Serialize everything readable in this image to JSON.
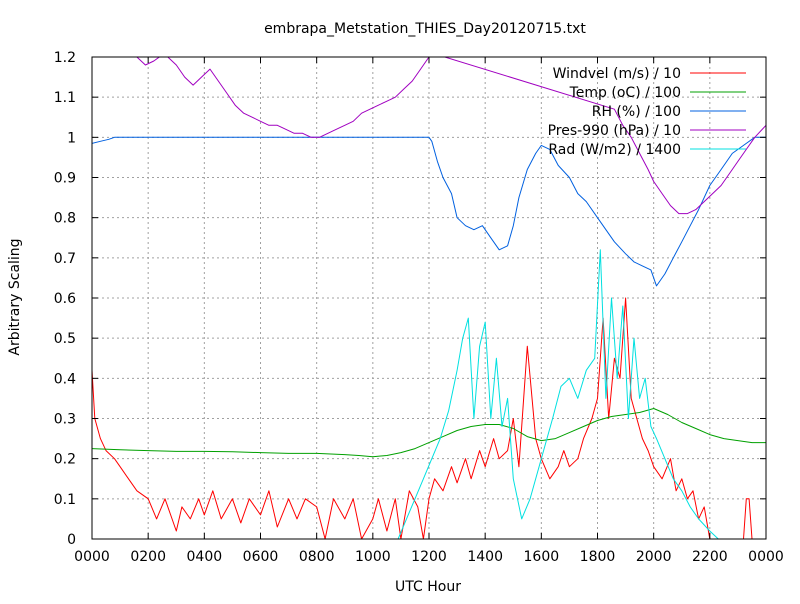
{
  "chart_data": {
    "type": "line",
    "title": "embrapa_Metstation_THIES_Day20120715.txt",
    "xlabel": "UTC Hour",
    "ylabel": "Arbitrary Scaling",
    "xlim": [
      0,
      24
    ],
    "ylim": [
      0,
      1.2
    ],
    "grid": true,
    "legend_position": "top-right",
    "x_ticks": [
      {
        "value": 0,
        "label": "0000"
      },
      {
        "value": 2,
        "label": "0200"
      },
      {
        "value": 4,
        "label": "0400"
      },
      {
        "value": 6,
        "label": "0600"
      },
      {
        "value": 8,
        "label": "0800"
      },
      {
        "value": 10,
        "label": "1000"
      },
      {
        "value": 12,
        "label": "1200"
      },
      {
        "value": 14,
        "label": "1400"
      },
      {
        "value": 16,
        "label": "1600"
      },
      {
        "value": 18,
        "label": "1800"
      },
      {
        "value": 20,
        "label": "2000"
      },
      {
        "value": 22,
        "label": "2200"
      },
      {
        "value": 24,
        "label": "0000"
      }
    ],
    "y_ticks": [
      {
        "value": 0,
        "label": "0"
      },
      {
        "value": 0.1,
        "label": "0.1"
      },
      {
        "value": 0.2,
        "label": "0.2"
      },
      {
        "value": 0.3,
        "label": "0.3"
      },
      {
        "value": 0.4,
        "label": "0.4"
      },
      {
        "value": 0.5,
        "label": "0.5"
      },
      {
        "value": 0.6,
        "label": "0.6"
      },
      {
        "value": 0.7,
        "label": "0.7"
      },
      {
        "value": 0.8,
        "label": "0.8"
      },
      {
        "value": 0.9,
        "label": "0.9"
      },
      {
        "value": 1,
        "label": "1"
      },
      {
        "value": 1.1,
        "label": "1.1"
      },
      {
        "value": 1.2,
        "label": "1.2"
      }
    ],
    "series": [
      {
        "name": "Windvel (m/s) / 10",
        "color": "#ff0000",
        "x": [
          0,
          0.1,
          0.3,
          0.5,
          0.8,
          1.0,
          1.3,
          1.6,
          2.0,
          2.3,
          2.6,
          3.0,
          3.2,
          3.5,
          3.8,
          4.0,
          4.3,
          4.6,
          5.0,
          5.3,
          5.6,
          6.0,
          6.3,
          6.6,
          7.0,
          7.3,
          7.6,
          8.0,
          8.3,
          8.6,
          9.0,
          9.3,
          9.6,
          10.0,
          10.2,
          10.5,
          10.8,
          11.0,
          11.3,
          11.6,
          11.8,
          12.0,
          12.2,
          12.5,
          12.8,
          13.0,
          13.3,
          13.5,
          13.8,
          14.0,
          14.3,
          14.5,
          14.8,
          15.0,
          15.2,
          15.5,
          15.8,
          16.0,
          16.3,
          16.6,
          16.8,
          17.0,
          17.3,
          17.5,
          17.8,
          18.0,
          18.2,
          18.4,
          18.6,
          18.8,
          19.0,
          19.2,
          19.4,
          19.6,
          19.8,
          20.0,
          20.3,
          20.6,
          20.8,
          21.0,
          21.2,
          21.4,
          21.6,
          21.8,
          22.0,
          22.2,
          22.4,
          22.6,
          22.8,
          23.0,
          23.2,
          23.3,
          23.4,
          23.5
        ],
        "values": [
          0.42,
          0.3,
          0.25,
          0.22,
          0.2,
          0.18,
          0.15,
          0.12,
          0.1,
          0.05,
          0.1,
          0.02,
          0.08,
          0.05,
          0.1,
          0.06,
          0.12,
          0.05,
          0.1,
          0.04,
          0.1,
          0.06,
          0.12,
          0.03,
          0.1,
          0.05,
          0.1,
          0.08,
          0.0,
          0.1,
          0.05,
          0.1,
          0.0,
          0.05,
          0.1,
          0.02,
          0.1,
          0.0,
          0.12,
          0.08,
          0.0,
          0.1,
          0.15,
          0.12,
          0.18,
          0.14,
          0.2,
          0.15,
          0.22,
          0.18,
          0.25,
          0.2,
          0.22,
          0.3,
          0.18,
          0.48,
          0.25,
          0.2,
          0.15,
          0.18,
          0.22,
          0.18,
          0.2,
          0.25,
          0.3,
          0.35,
          0.55,
          0.3,
          0.45,
          0.4,
          0.6,
          0.35,
          0.3,
          0.25,
          0.22,
          0.18,
          0.15,
          0.2,
          0.12,
          0.15,
          0.1,
          0.12,
          0.05,
          0.08,
          0.0,
          0.0,
          0.0,
          0.0,
          0.0,
          0.0,
          0.0,
          0.1,
          0.1,
          0.0
        ]
      },
      {
        "name": "Temp (oC) / 100",
        "color": "#00a000",
        "x": [
          0,
          1,
          2,
          3,
          4,
          5,
          6,
          7,
          8,
          9,
          9.5,
          10,
          10.5,
          11,
          11.5,
          12,
          12.5,
          13,
          13.5,
          14,
          14.5,
          15,
          15.5,
          16,
          16.5,
          17,
          17.5,
          18,
          18.5,
          19,
          19.5,
          20,
          20.5,
          21,
          21.5,
          22,
          22.5,
          23,
          23.5,
          24
        ],
        "values": [
          0.225,
          0.222,
          0.22,
          0.218,
          0.218,
          0.217,
          0.215,
          0.213,
          0.213,
          0.21,
          0.208,
          0.205,
          0.208,
          0.215,
          0.225,
          0.24,
          0.255,
          0.27,
          0.28,
          0.285,
          0.285,
          0.275,
          0.255,
          0.245,
          0.25,
          0.265,
          0.28,
          0.295,
          0.305,
          0.31,
          0.315,
          0.325,
          0.31,
          0.29,
          0.275,
          0.26,
          0.25,
          0.245,
          0.24,
          0.24
        ]
      },
      {
        "name": "RH (%) / 100",
        "color": "#0060e0",
        "x": [
          0,
          0.3,
          0.6,
          0.8,
          1,
          2,
          4,
          6,
          8,
          10,
          12,
          12.1,
          12.3,
          12.5,
          12.8,
          13,
          13.3,
          13.6,
          13.9,
          14.2,
          14.5,
          14.8,
          15.0,
          15.2,
          15.5,
          15.8,
          16.0,
          16.3,
          16.6,
          17.0,
          17.3,
          17.6,
          18.0,
          18.3,
          18.6,
          19.0,
          19.3,
          19.6,
          19.9,
          20.1,
          20.4,
          20.7,
          21.0,
          21.3,
          21.6,
          22.0,
          22.4,
          22.8,
          23.2,
          23.6,
          24
        ],
        "values": [
          0.985,
          0.99,
          0.995,
          1.0,
          1.0,
          1.0,
          1.0,
          1.0,
          1.0,
          1.0,
          1.0,
          0.99,
          0.94,
          0.9,
          0.86,
          0.8,
          0.78,
          0.77,
          0.78,
          0.75,
          0.72,
          0.73,
          0.78,
          0.85,
          0.92,
          0.96,
          0.98,
          0.97,
          0.93,
          0.9,
          0.86,
          0.84,
          0.8,
          0.77,
          0.74,
          0.71,
          0.69,
          0.68,
          0.67,
          0.63,
          0.66,
          0.7,
          0.74,
          0.78,
          0.82,
          0.88,
          0.92,
          0.96,
          0.98,
          1.0,
          1.0
        ]
      },
      {
        "name": "Pres-990 (hPa) / 10",
        "color": "#a000c0",
        "x": [
          1.6,
          1.9,
          2.2,
          2.4,
          2.7,
          3.0,
          3.3,
          3.6,
          3.9,
          4.2,
          4.5,
          4.8,
          5.1,
          5.4,
          5.7,
          6.0,
          6.3,
          6.6,
          6.9,
          7.2,
          7.5,
          7.8,
          8.1,
          8.4,
          8.7,
          9.0,
          9.3,
          9.6,
          9.9,
          10.2,
          10.5,
          10.8,
          11.1,
          11.4,
          11.7,
          12.0,
          12.1,
          18.6,
          18.9,
          19.2,
          19.5,
          19.8,
          20.0,
          20.3,
          20.6,
          20.9,
          21.2,
          21.5,
          21.8,
          22.1,
          22.4,
          22.7,
          23.0,
          23.3,
          23.6,
          24
        ],
        "values": [
          1.2,
          1.18,
          1.19,
          1.2,
          1.2,
          1.18,
          1.15,
          1.13,
          1.15,
          1.17,
          1.14,
          1.11,
          1.08,
          1.06,
          1.05,
          1.04,
          1.03,
          1.03,
          1.02,
          1.01,
          1.01,
          1.0,
          1.0,
          1.01,
          1.02,
          1.03,
          1.04,
          1.06,
          1.07,
          1.08,
          1.09,
          1.1,
          1.12,
          1.14,
          1.17,
          1.2,
          1.21,
          1.07,
          1.03,
          1.0,
          0.96,
          0.92,
          0.89,
          0.86,
          0.83,
          0.81,
          0.81,
          0.82,
          0.84,
          0.86,
          0.88,
          0.91,
          0.94,
          0.97,
          1.0,
          1.03
        ]
      },
      {
        "name": "Rad (W/m2) / 1400",
        "color": "#00e0e0",
        "x": [
          10.9,
          11.2,
          11.5,
          11.8,
          12.1,
          12.4,
          12.7,
          13.0,
          13.2,
          13.4,
          13.6,
          13.8,
          14.0,
          14.2,
          14.4,
          14.6,
          14.8,
          15.0,
          15.3,
          15.6,
          16.0,
          16.4,
          16.7,
          17.0,
          17.3,
          17.6,
          17.9,
          18.1,
          18.3,
          18.5,
          18.7,
          18.9,
          19.1,
          19.3,
          19.5,
          19.7,
          19.9,
          20.1,
          20.4,
          20.7,
          21.0,
          21.3,
          21.6,
          22.0,
          22.3
        ],
        "values": [
          0.0,
          0.05,
          0.1,
          0.15,
          0.2,
          0.25,
          0.32,
          0.42,
          0.5,
          0.55,
          0.3,
          0.48,
          0.54,
          0.3,
          0.45,
          0.28,
          0.35,
          0.15,
          0.05,
          0.1,
          0.2,
          0.3,
          0.38,
          0.4,
          0.35,
          0.42,
          0.45,
          0.72,
          0.35,
          0.6,
          0.4,
          0.58,
          0.3,
          0.5,
          0.35,
          0.4,
          0.28,
          0.25,
          0.2,
          0.15,
          0.12,
          0.08,
          0.05,
          0.02,
          0.0
        ]
      }
    ]
  }
}
